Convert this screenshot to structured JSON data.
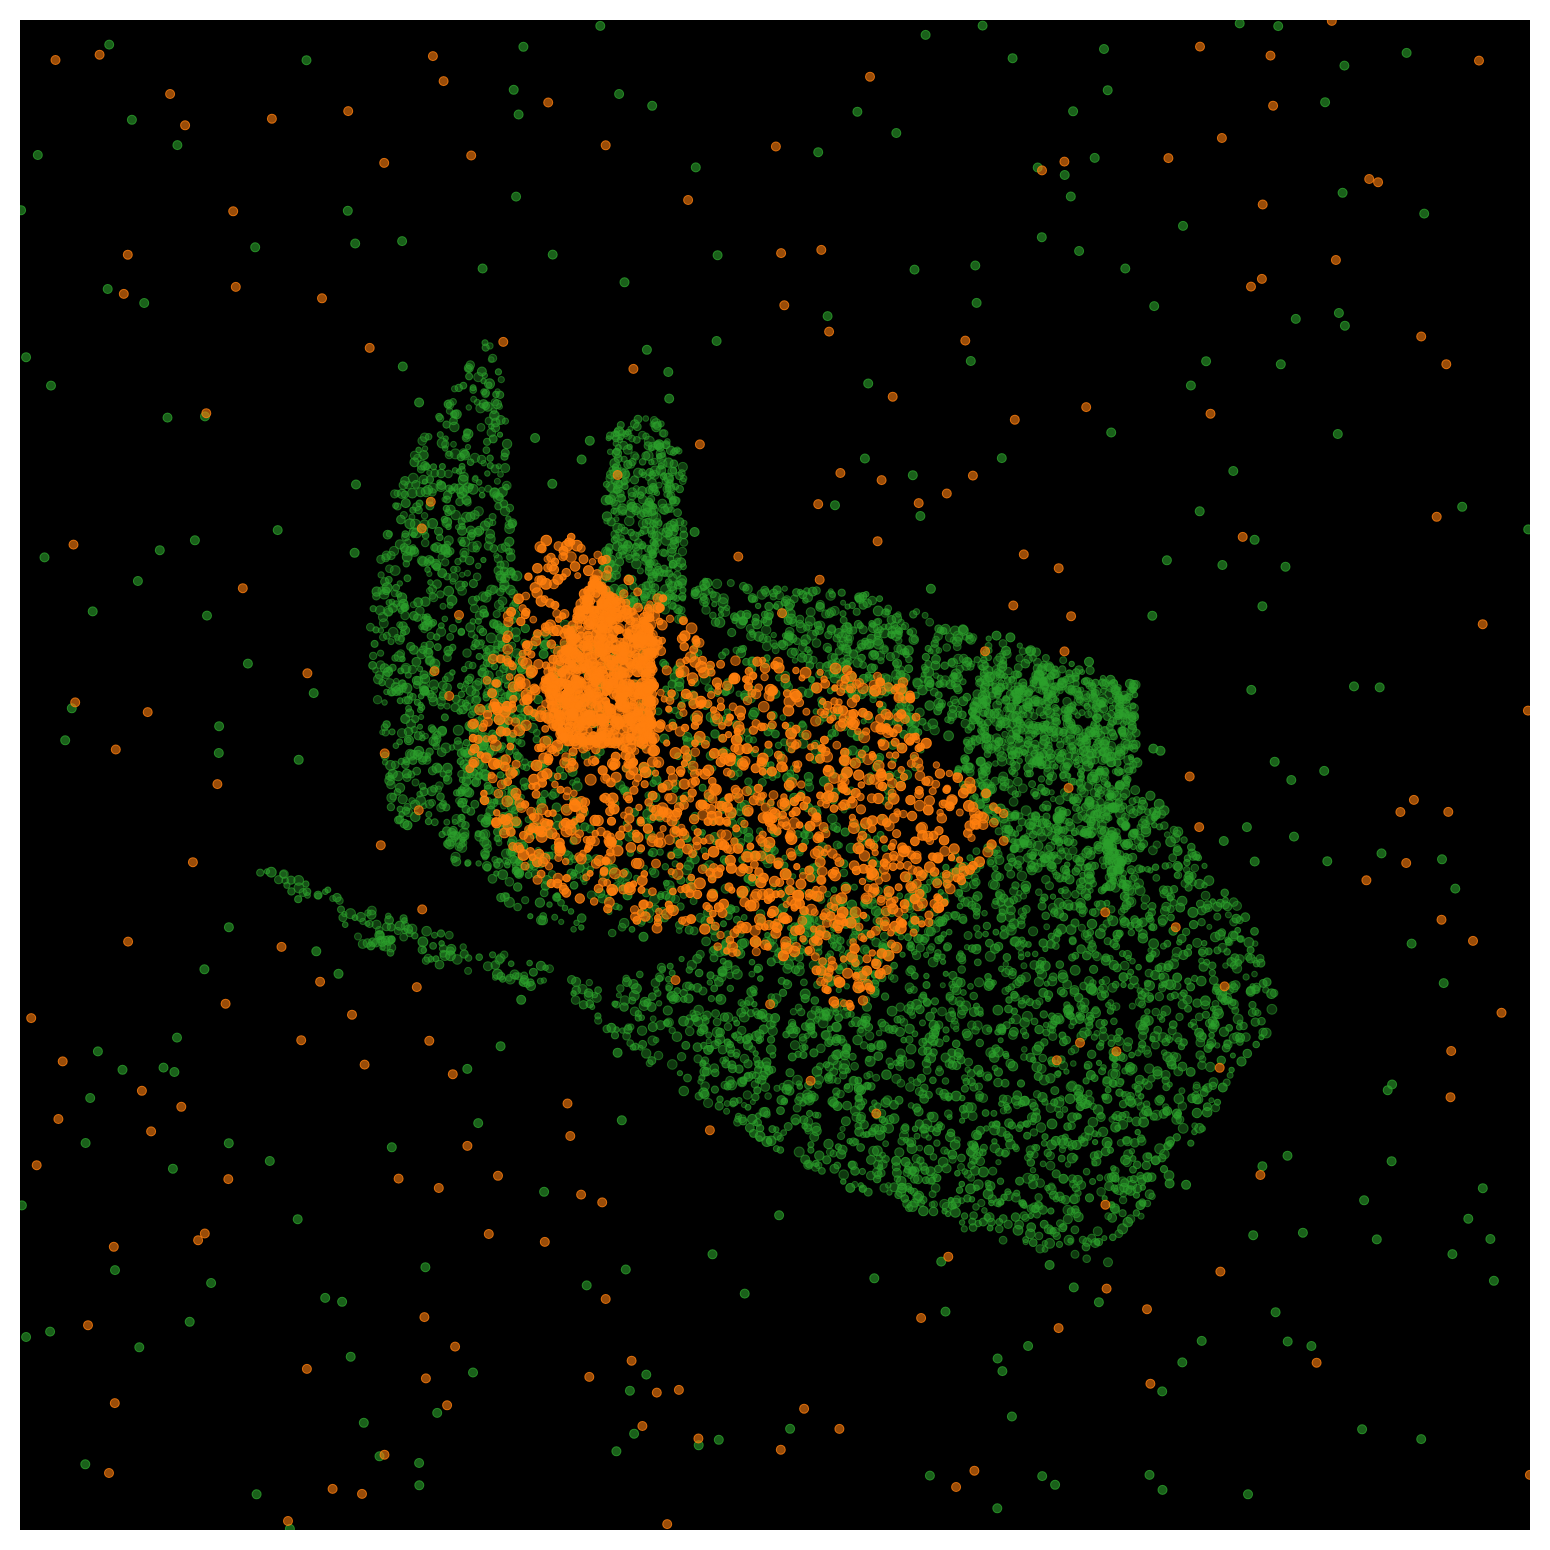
{
  "chart_data": {
    "type": "scatter",
    "background": "#000000",
    "grid": false,
    "axes_visible": false,
    "xlim": [
      0,
      1
    ],
    "ylim": [
      0,
      1
    ],
    "noise_seed": 7,
    "series": [
      {
        "key": "green",
        "color": "#2ca02c",
        "opacity": 0.55,
        "clusters": [
          {
            "shape": "polygon",
            "count": 2600,
            "poly": [
              [
                0.145,
                0.445
              ],
              [
                0.385,
                0.36
              ],
              [
                0.56,
                0.42
              ],
              [
                0.74,
                0.5
              ],
              [
                0.82,
                0.395
              ],
              [
                0.835,
                0.34
              ],
              [
                0.72,
                0.175
              ],
              [
                0.635,
                0.195
              ],
              [
                0.52,
                0.24
              ],
              [
                0.44,
                0.29
              ],
              [
                0.36,
                0.355
              ],
              [
                0.23,
                0.385
              ]
            ]
          },
          {
            "shape": "polygon",
            "count": 900,
            "poly": [
              [
                0.245,
                0.47
              ],
              [
                0.34,
                0.43
              ],
              [
                0.33,
                0.62
              ],
              [
                0.32,
                0.76
              ],
              [
                0.31,
                0.79
              ],
              [
                0.25,
                0.7
              ],
              [
                0.23,
                0.6
              ]
            ]
          },
          {
            "shape": "polygon",
            "count": 400,
            "poly": [
              [
                0.385,
                0.62
              ],
              [
                0.44,
                0.6
              ],
              [
                0.44,
                0.71
              ],
              [
                0.42,
                0.74
              ],
              [
                0.39,
                0.73
              ]
            ]
          },
          {
            "shape": "polygon",
            "count": 700,
            "poly": [
              [
                0.44,
                0.63
              ],
              [
                0.56,
                0.62
              ],
              [
                0.68,
                0.58
              ],
              [
                0.74,
                0.56
              ],
              [
                0.74,
                0.5
              ],
              [
                0.7,
                0.5
              ],
              [
                0.6,
                0.53
              ],
              [
                0.46,
                0.6
              ]
            ]
          },
          {
            "shape": "polygon",
            "count": 700,
            "poly": [
              [
                0.64,
                0.58
              ],
              [
                0.74,
                0.56
              ],
              [
                0.73,
                0.42
              ],
              [
                0.66,
                0.44
              ],
              [
                0.62,
                0.5
              ]
            ]
          },
          {
            "shape": "polygon",
            "count": 900,
            "poly": [
              [
                0.31,
                0.6
              ],
              [
                0.35,
                0.61
              ],
              [
                0.39,
                0.58
              ],
              [
                0.57,
                0.6
              ],
              [
                0.6,
                0.52
              ],
              [
                0.55,
                0.38
              ],
              [
                0.34,
                0.4
              ],
              [
                0.28,
                0.45
              ]
            ]
          }
        ],
        "scatter_count": 290
      },
      {
        "key": "orange",
        "color": "#ff7f0e",
        "opacity": 0.85,
        "clusters": [
          {
            "shape": "polygon",
            "count": 1500,
            "poly": [
              [
                0.32,
                0.6
              ],
              [
                0.345,
                0.655
              ],
              [
                0.365,
                0.66
              ],
              [
                0.43,
                0.615
              ],
              [
                0.46,
                0.58
              ],
              [
                0.59,
                0.565
              ],
              [
                0.595,
                0.53
              ],
              [
                0.66,
                0.47
              ],
              [
                0.545,
                0.335
              ],
              [
                0.52,
                0.38
              ],
              [
                0.47,
                0.38
              ],
              [
                0.34,
                0.43
              ],
              [
                0.3,
                0.49
              ],
              [
                0.295,
                0.52
              ]
            ]
          },
          {
            "shape": "polygon",
            "count": 700,
            "poly": [
              [
                0.345,
                0.56
              ],
              [
                0.38,
                0.63
              ],
              [
                0.42,
                0.6
              ],
              [
                0.42,
                0.52
              ],
              [
                0.36,
                0.52
              ]
            ]
          }
        ],
        "scatter_count": 200
      }
    ]
  }
}
